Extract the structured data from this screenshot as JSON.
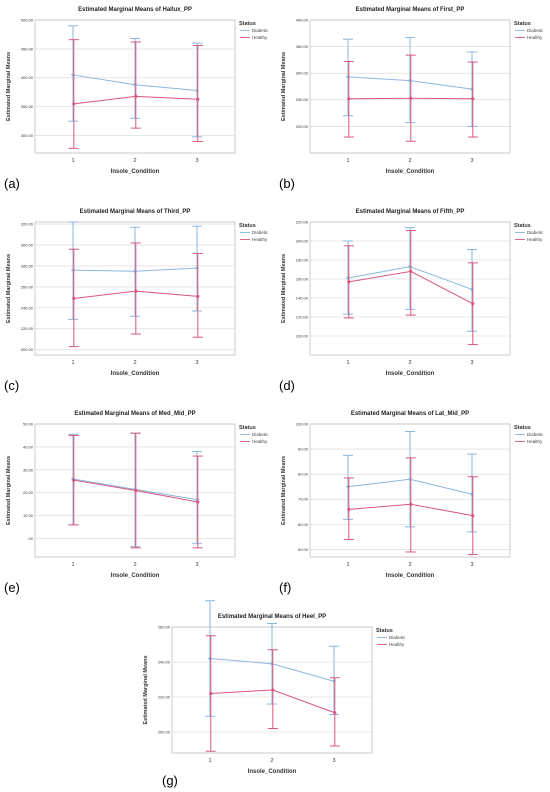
{
  "colors": {
    "Diabetic": "#8db6dc",
    "Healthy": "#d9577f"
  },
  "chart_data": [
    {
      "type": "line",
      "panel": "(a)",
      "title": "Estimated Marginal Means of Hallux_PP",
      "xlabel": "Insole_Condition",
      "ylabel": "Estimated Marginal Means",
      "categories": [
        "1",
        "2",
        "3"
      ],
      "ylim": [
        270,
        500
      ],
      "yticks": [
        300,
        350,
        400,
        450,
        500
      ],
      "ytick_labels": [
        "300.00",
        "350.00",
        "400.00",
        "450.00",
        "500.00"
      ],
      "legend_title": "Status",
      "legend_position": "top-right",
      "series": [
        {
          "name": "Diabetic",
          "values": [
            405,
            388,
            378
          ],
          "lower": [
            325,
            330,
            298
          ],
          "upper": [
            490,
            468,
            460
          ]
        },
        {
          "name": "Healthy",
          "values": [
            355,
            368,
            363
          ],
          "lower": [
            278,
            313,
            290
          ],
          "upper": [
            466,
            462,
            456
          ]
        }
      ]
    },
    {
      "type": "line",
      "panel": "(b)",
      "title": "Estimated Marginal Means of First_PP",
      "xlabel": "Insole_Condition",
      "ylabel": "Estimated Marginal Means",
      "categories": [
        "1",
        "2",
        "3"
      ],
      "ylim": [
        150,
        400
      ],
      "yticks": [
        200,
        250,
        300,
        350,
        400
      ],
      "ytick_labels": [
        "200.00",
        "250.00",
        "300.00",
        "350.00",
        "400.00"
      ],
      "legend_title": "Status",
      "legend_position": "top-right",
      "series": [
        {
          "name": "Diabetic",
          "values": [
            293,
            286,
            270
          ],
          "lower": [
            220,
            207,
            200
          ],
          "upper": [
            364,
            367,
            340
          ]
        },
        {
          "name": "Healthy",
          "values": [
            252,
            253,
            252
          ],
          "lower": [
            180,
            172,
            180
          ],
          "upper": [
            322,
            334,
            321
          ]
        }
      ]
    },
    {
      "type": "line",
      "panel": "(c)",
      "title": "Estimated Marginal Means of Third_PP",
      "xlabel": "Insole_Condition",
      "ylabel": "Estimated Marginal Means",
      "categories": [
        "1",
        "2",
        "3"
      ],
      "ylim": [
        195,
        322
      ],
      "yticks": [
        200,
        220,
        240,
        260,
        280,
        300,
        320
      ],
      "ytick_labels": [
        "200.00",
        "220.00",
        "240.00",
        "260.00",
        "280.00",
        "300.00",
        "320.00"
      ],
      "legend_title": "Status",
      "legend_position": "top-right",
      "series": [
        {
          "name": "Diabetic",
          "values": [
            276,
            275,
            278
          ],
          "lower": [
            229,
            232,
            237
          ],
          "upper": [
            322,
            317,
            318
          ]
        },
        {
          "name": "Healthy",
          "values": [
            249,
            256,
            251
          ],
          "lower": [
            203,
            215,
            212
          ],
          "upper": [
            296,
            302,
            292
          ]
        }
      ]
    },
    {
      "type": "line",
      "panel": "(d)",
      "title": "Estimated Marginal Means of Fifth_PP",
      "xlabel": "Insole_Condition",
      "ylabel": "Estimated Marginal Means",
      "categories": [
        "1",
        "2",
        "3"
      ],
      "ylim": [
        80,
        220
      ],
      "yticks": [
        100,
        120,
        140,
        160,
        180,
        200,
        220
      ],
      "ytick_labels": [
        "100.00",
        "120.00",
        "140.00",
        "160.00",
        "180.00",
        "200.00",
        "220.00"
      ],
      "legend_title": "Status",
      "legend_position": "top-right",
      "series": [
        {
          "name": "Diabetic",
          "values": [
            161,
            173,
            149
          ],
          "lower": [
            123,
            128,
            105
          ],
          "upper": [
            200,
            214,
            191
          ]
        },
        {
          "name": "Healthy",
          "values": [
            157,
            168,
            134
          ],
          "lower": [
            119,
            122,
            91
          ],
          "upper": [
            195,
            211,
            177
          ]
        }
      ]
    },
    {
      "type": "line",
      "panel": "(e)",
      "title": "Estimated Marginal Means of Med_Mid_PP",
      "xlabel": "Insole_Condition",
      "ylabel": "Estimated Marginal Means",
      "categories": [
        "1",
        "2",
        "3"
      ],
      "ylim": [
        -8,
        50
      ],
      "yticks": [
        0,
        10,
        20,
        30,
        40,
        50
      ],
      "ytick_labels": [
        ".00",
        "10.00",
        "20.00",
        "30.00",
        "40.00",
        "50.00"
      ],
      "legend_title": "Status",
      "legend_position": "top-right",
      "series": [
        {
          "name": "Diabetic",
          "values": [
            26,
            21.5,
            17
          ],
          "lower": [
            6,
            -3.5,
            -2
          ],
          "upper": [
            45.5,
            46,
            38
          ]
        },
        {
          "name": "Healthy",
          "values": [
            25.5,
            21,
            16
          ],
          "lower": [
            6,
            -4,
            -4
          ],
          "upper": [
            45,
            46,
            36
          ]
        }
      ]
    },
    {
      "type": "line",
      "panel": "(f)",
      "title": "Estimated Marginal Means of Lat_Mid_PP",
      "xlabel": "Insole_Condition",
      "ylabel": "Estimated Marginal Means",
      "categories": [
        "1",
        "2",
        "3"
      ],
      "ylim": [
        47,
        100
      ],
      "yticks": [
        50,
        60,
        70,
        80,
        90,
        100
      ],
      "ytick_labels": [
        "50.00",
        "60.00",
        "70.00",
        "80.00",
        "90.00",
        "100.00"
      ],
      "legend_title": "Status",
      "legend_position": "top-right",
      "series": [
        {
          "name": "Diabetic",
          "values": [
            75,
            78,
            72
          ],
          "lower": [
            62,
            59,
            57
          ],
          "upper": [
            87.5,
            97,
            88
          ]
        },
        {
          "name": "Healthy",
          "values": [
            66,
            68,
            63.5
          ],
          "lower": [
            54,
            49,
            48
          ],
          "upper": [
            78.5,
            86.5,
            79
          ]
        }
      ]
    },
    {
      "type": "line",
      "panel": "(g)",
      "title": "Estimated Marginal Means of Heel_PP",
      "xlabel": "Insole_Condition",
      "ylabel": "Estimated Marginal Means",
      "categories": [
        "1",
        "2",
        "3"
      ],
      "ylim": [
        188,
        260
      ],
      "yticks": [
        200,
        220,
        240,
        260
      ],
      "ytick_labels": [
        "200.00",
        "220.00",
        "240.00",
        "260.00"
      ],
      "legend_title": "Status",
      "legend_position": "top-right",
      "series": [
        {
          "name": "Diabetic",
          "values": [
            242,
            239,
            229
          ],
          "lower": [
            209,
            216,
            210
          ],
          "upper": [
            275,
            262,
            249
          ]
        },
        {
          "name": "Healthy",
          "values": [
            222,
            224,
            211
          ],
          "lower": [
            189,
            202,
            192
          ],
          "upper": [
            255,
            247,
            231
          ]
        }
      ]
    }
  ]
}
